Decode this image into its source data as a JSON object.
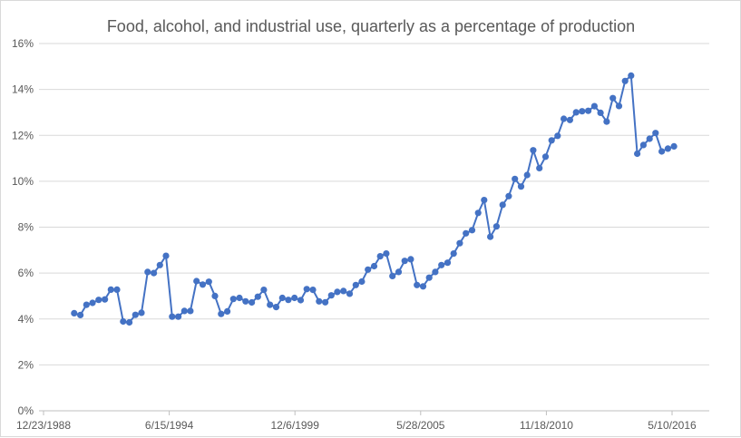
{
  "chart_data": {
    "type": "line",
    "title": "Food, alcohol, and industrial use, quarterly as a percentage of production",
    "xlabel": "",
    "ylabel": "",
    "x_axis": {
      "min": "1988-12-23",
      "max": "2016-05-10",
      "tick_labels": [
        "12/23/1988",
        "6/15/1994",
        "12/6/1999",
        "5/28/2005",
        "11/18/2010",
        "5/10/2016"
      ]
    },
    "y_axis": {
      "min": 0,
      "max": 16,
      "step": 2,
      "tick_labels": [
        "0%",
        "2%",
        "4%",
        "6%",
        "8%",
        "10%",
        "12%",
        "14%",
        "16%"
      ]
    },
    "grid": "horizontal",
    "legend": "none",
    "colors": {
      "series": "#4472C4"
    },
    "series": [
      {
        "x": [
          "1990-06-01",
          "1990-09-01",
          "1990-12-01",
          "1991-03-01",
          "1991-06-01",
          "1991-09-01",
          "1991-12-01",
          "1992-03-01",
          "1992-06-01",
          "1992-09-01",
          "1992-12-01",
          "1993-03-01",
          "1993-06-01",
          "1993-09-01",
          "1993-12-01",
          "1994-03-01",
          "1994-06-01",
          "1994-09-01",
          "1994-12-01",
          "1995-03-01",
          "1995-06-01",
          "1995-09-01",
          "1995-12-01",
          "1996-03-01",
          "1996-06-01",
          "1996-09-01",
          "1996-12-01",
          "1997-03-01",
          "1997-06-01",
          "1997-09-01",
          "1997-12-01",
          "1998-03-01",
          "1998-06-01",
          "1998-09-01",
          "1998-12-01",
          "1999-03-01",
          "1999-06-01",
          "1999-09-01",
          "1999-12-01",
          "2000-03-01",
          "2000-06-01",
          "2000-09-01",
          "2000-12-01",
          "2001-03-01",
          "2001-06-01",
          "2001-09-01",
          "2001-12-01",
          "2002-03-01",
          "2002-06-01",
          "2002-09-01",
          "2002-12-01",
          "2003-03-01",
          "2003-06-01",
          "2003-09-01",
          "2003-12-01",
          "2004-03-01",
          "2004-06-01",
          "2004-09-01",
          "2004-12-01",
          "2005-03-01",
          "2005-06-01",
          "2005-09-01",
          "2005-12-01",
          "2006-03-01",
          "2006-06-01",
          "2006-09-01",
          "2006-12-01",
          "2007-03-01",
          "2007-06-01",
          "2007-09-01",
          "2007-12-01",
          "2008-03-01",
          "2008-06-01",
          "2008-09-01",
          "2008-12-01",
          "2009-03-01",
          "2009-06-01",
          "2009-09-01",
          "2009-12-01",
          "2010-03-01",
          "2010-06-01",
          "2010-09-01",
          "2010-12-01",
          "2011-03-01",
          "2011-06-01",
          "2011-09-01",
          "2011-12-01",
          "2012-03-01",
          "2012-06-01",
          "2012-09-01",
          "2012-12-01",
          "2013-03-01",
          "2013-06-01",
          "2013-09-01",
          "2013-12-01",
          "2014-03-01",
          "2014-06-01",
          "2014-09-01",
          "2014-12-01"
        ],
        "values": [
          4.25,
          4.17,
          4.62,
          4.7,
          4.83,
          4.85,
          5.28,
          5.28,
          3.89,
          3.85,
          4.18,
          4.27,
          6.05,
          6.0,
          6.35,
          6.75,
          4.1,
          4.1,
          4.35,
          4.35,
          5.65,
          5.5,
          5.62,
          5.0,
          4.22,
          4.33,
          4.87,
          4.92,
          4.77,
          4.72,
          4.97,
          5.27,
          4.62,
          4.52,
          4.92,
          4.83,
          4.92,
          4.82,
          5.3,
          5.27,
          4.77,
          4.73,
          5.03,
          5.18,
          5.22,
          5.1,
          5.48,
          5.63,
          6.15,
          6.3,
          6.73,
          6.85,
          5.87,
          6.05,
          6.53,
          6.6,
          5.48,
          5.42,
          5.8,
          6.05,
          6.35,
          6.45,
          6.85,
          7.3,
          7.73,
          7.87,
          8.62,
          9.18,
          7.58,
          8.03,
          8.97,
          9.35,
          10.1,
          9.77,
          10.27,
          11.35,
          10.57,
          11.07,
          11.78,
          11.98,
          12.72,
          12.67,
          13.0,
          13.05,
          13.07,
          13.27,
          12.98,
          12.6,
          13.62,
          13.28,
          14.37,
          14.6,
          11.2,
          11.58,
          11.85,
          12.1,
          11.3,
          11.42,
          11.52
        ]
      }
    ]
  }
}
